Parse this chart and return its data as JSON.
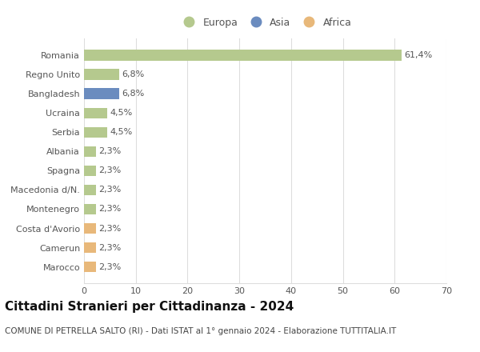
{
  "countries": [
    "Romania",
    "Regno Unito",
    "Bangladesh",
    "Ucraina",
    "Serbia",
    "Albania",
    "Spagna",
    "Macedonia d/N.",
    "Montenegro",
    "Costa d'Avorio",
    "Camerun",
    "Marocco"
  ],
  "values": [
    61.4,
    6.8,
    6.8,
    4.5,
    4.5,
    2.3,
    2.3,
    2.3,
    2.3,
    2.3,
    2.3,
    2.3
  ],
  "labels": [
    "61,4%",
    "6,8%",
    "6,8%",
    "4,5%",
    "4,5%",
    "2,3%",
    "2,3%",
    "2,3%",
    "2,3%",
    "2,3%",
    "2,3%",
    "2,3%"
  ],
  "continents": [
    "Europa",
    "Europa",
    "Asia",
    "Europa",
    "Europa",
    "Europa",
    "Europa",
    "Europa",
    "Europa",
    "Africa",
    "Africa",
    "Africa"
  ],
  "colors": {
    "Europa": "#b5c98e",
    "Asia": "#6b8cbf",
    "Africa": "#e8b87a"
  },
  "legend_order": [
    "Europa",
    "Asia",
    "Africa"
  ],
  "xlim": [
    0,
    70
  ],
  "xticks": [
    0,
    10,
    20,
    30,
    40,
    50,
    60,
    70
  ],
  "title": "Cittadini Stranieri per Cittadinanza - 2024",
  "subtitle": "COMUNE DI PETRELLA SALTO (RI) - Dati ISTAT al 1° gennaio 2024 - Elaborazione TUTTITALIA.IT",
  "background_color": "#ffffff",
  "grid_color": "#dddddd",
  "bar_height": 0.55,
  "title_fontsize": 11,
  "subtitle_fontsize": 7.5,
  "tick_fontsize": 8,
  "label_fontsize": 8,
  "legend_fontsize": 9
}
